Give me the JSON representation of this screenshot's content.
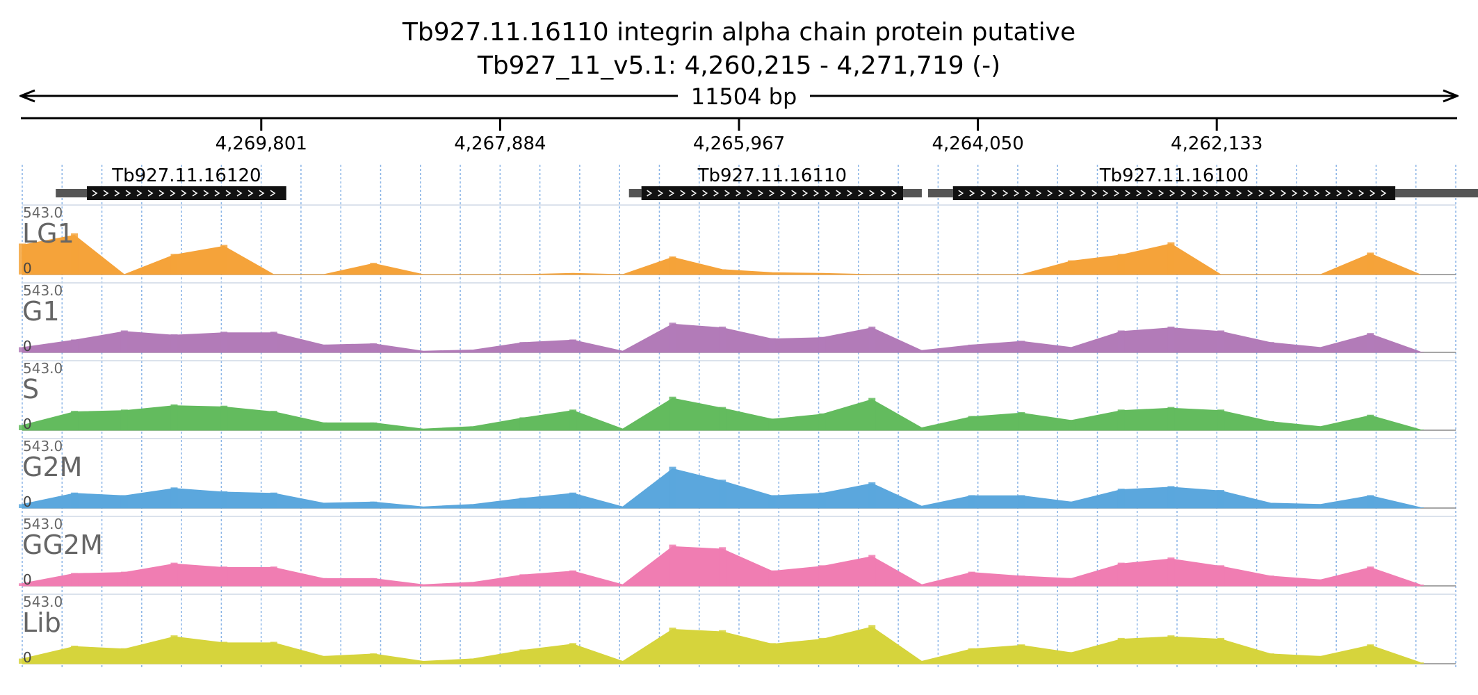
{
  "chart_data": {
    "type": "area",
    "title": "Tb927.11.16110  integrin alpha chain protein  putative",
    "subtitle": "Tb927_11_v5.1: 4,260,215 - 4,271,719 (-)",
    "span_label": "11504 bp",
    "region": {
      "start": 4260215,
      "end": 4271719,
      "strand": "-"
    },
    "x_ticks": [
      4269801,
      4267884,
      4265967,
      4264050,
      4262133
    ],
    "x_tick_labels": [
      "4,269,801",
      "4,267,884",
      "4,265,967",
      "4,264,050",
      "4,262,133"
    ],
    "genes": [
      {
        "name": "Tb927.11.16120",
        "utr_start": 4271450,
        "start": 4271200,
        "end": 4269600
      },
      {
        "name": "Tb927.11.16110",
        "utr_start": 4266850,
        "start": 4266750,
        "end": 4264650,
        "utr_end": 4264500
      },
      {
        "name": "Tb927.11.16100",
        "utr_start": 4264450,
        "start": 4264250,
        "end": 4260700,
        "utr_end": 4259900
      }
    ],
    "tracks": [
      {
        "name": "LG1",
        "max_label": "543.0",
        "min_label": "0",
        "color": "#F5A33A"
      },
      {
        "name": "G1",
        "max_label": "543.0",
        "min_label": "0",
        "color": "#B27BB8"
      },
      {
        "name": "S",
        "max_label": "543.0",
        "min_label": "0",
        "color": "#63BB5E"
      },
      {
        "name": "G2M",
        "max_label": "543.0",
        "min_label": "0",
        "color": "#5BA7DD"
      },
      {
        "name": "GG2M",
        "max_label": "543.0",
        "min_label": "0",
        "color": "#F07DB2"
      },
      {
        "name": "Lib",
        "max_label": "543.0",
        "min_label": "0",
        "color": "#D6D43C"
      }
    ],
    "coverage_scale": [
      0,
      543
    ],
    "coverage": {
      "x": [
        4271719,
        4271300,
        4270900,
        4270500,
        4270100,
        4269700,
        4269300,
        4268900,
        4268500,
        4268100,
        4267700,
        4267300,
        4266900,
        4266500,
        4266100,
        4265700,
        4265300,
        4264900,
        4264500,
        4264100,
        4263700,
        4263300,
        4262900,
        4262500,
        4262100,
        4261700,
        4261300,
        4260900,
        4260500
      ],
      "series": [
        {
          "name": "LG1",
          "values": [
            240,
            320,
            0,
            160,
            230,
            0,
            0,
            90,
            0,
            0,
            0,
            10,
            0,
            140,
            40,
            15,
            10,
            0,
            0,
            0,
            0,
            110,
            160,
            250,
            0,
            0,
            0,
            170,
            0
          ]
        },
        {
          "name": "G1",
          "values": [
            40,
            100,
            170,
            140,
            160,
            160,
            60,
            70,
            10,
            20,
            80,
            100,
            10,
            230,
            200,
            110,
            120,
            200,
            15,
            60,
            90,
            40,
            170,
            200,
            170,
            80,
            40,
            150,
            5
          ]
        },
        {
          "name": "S",
          "values": [
            40,
            150,
            160,
            200,
            190,
            150,
            60,
            60,
            10,
            30,
            100,
            160,
            10,
            260,
            180,
            90,
            130,
            250,
            20,
            110,
            140,
            80,
            160,
            180,
            160,
            70,
            30,
            120,
            5
          ]
        },
        {
          "name": "G2M",
          "values": [
            30,
            120,
            100,
            160,
            130,
            120,
            40,
            50,
            10,
            30,
            80,
            120,
            10,
            320,
            220,
            100,
            120,
            200,
            15,
            100,
            100,
            50,
            150,
            170,
            140,
            40,
            30,
            100,
            5
          ]
        },
        {
          "name": "GG2M",
          "values": [
            20,
            100,
            110,
            180,
            150,
            150,
            60,
            60,
            10,
            30,
            90,
            120,
            10,
            320,
            300,
            120,
            160,
            240,
            10,
            110,
            80,
            60,
            180,
            220,
            160,
            80,
            50,
            150,
            10
          ]
        },
        {
          "name": "Lib",
          "values": [
            40,
            140,
            120,
            220,
            170,
            170,
            60,
            80,
            20,
            40,
            110,
            160,
            20,
            280,
            260,
            160,
            200,
            300,
            20,
            120,
            150,
            90,
            200,
            220,
            200,
            80,
            60,
            150,
            10
          ]
        }
      ]
    }
  }
}
